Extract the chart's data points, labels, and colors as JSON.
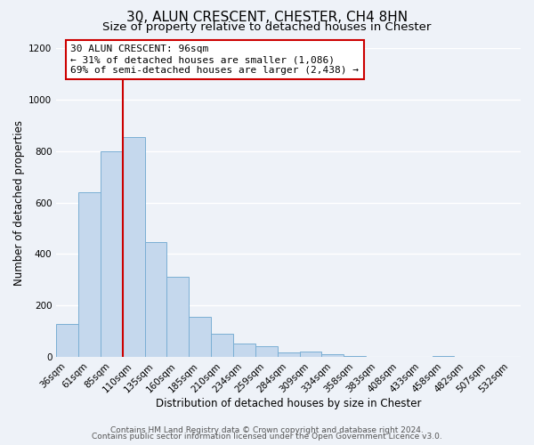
{
  "title": "30, ALUN CRESCENT, CHESTER, CH4 8HN",
  "subtitle": "Size of property relative to detached houses in Chester",
  "xlabel": "Distribution of detached houses by size in Chester",
  "ylabel": "Number of detached properties",
  "bar_labels": [
    "36sqm",
    "61sqm",
    "85sqm",
    "110sqm",
    "135sqm",
    "160sqm",
    "185sqm",
    "210sqm",
    "234sqm",
    "259sqm",
    "284sqm",
    "309sqm",
    "334sqm",
    "358sqm",
    "383sqm",
    "408sqm",
    "433sqm",
    "458sqm",
    "482sqm",
    "507sqm",
    "532sqm"
  ],
  "bar_heights": [
    130,
    640,
    800,
    855,
    445,
    310,
    155,
    90,
    52,
    42,
    17,
    22,
    10,
    5,
    2,
    0,
    0,
    5,
    0,
    0,
    0
  ],
  "bar_color": "#c5d8ed",
  "bar_edge_color": "#7bafd4",
  "property_line_color": "#cc0000",
  "property_line_x": 2.5,
  "annotation_text": "30 ALUN CRESCENT: 96sqm\n← 31% of detached houses are smaller (1,086)\n69% of semi-detached houses are larger (2,438) →",
  "annotation_box_color": "#ffffff",
  "annotation_box_edge": "#cc0000",
  "ylim": [
    0,
    1200
  ],
  "yticks": [
    0,
    200,
    400,
    600,
    800,
    1000,
    1200
  ],
  "footer_line1": "Contains HM Land Registry data © Crown copyright and database right 2024.",
  "footer_line2": "Contains public sector information licensed under the Open Government Licence v3.0.",
  "bg_color": "#eef2f8",
  "grid_color": "#ffffff",
  "title_fontsize": 11,
  "subtitle_fontsize": 9.5,
  "axis_label_fontsize": 8.5,
  "tick_fontsize": 7.5,
  "footer_fontsize": 6.5,
  "annot_fontsize": 8
}
